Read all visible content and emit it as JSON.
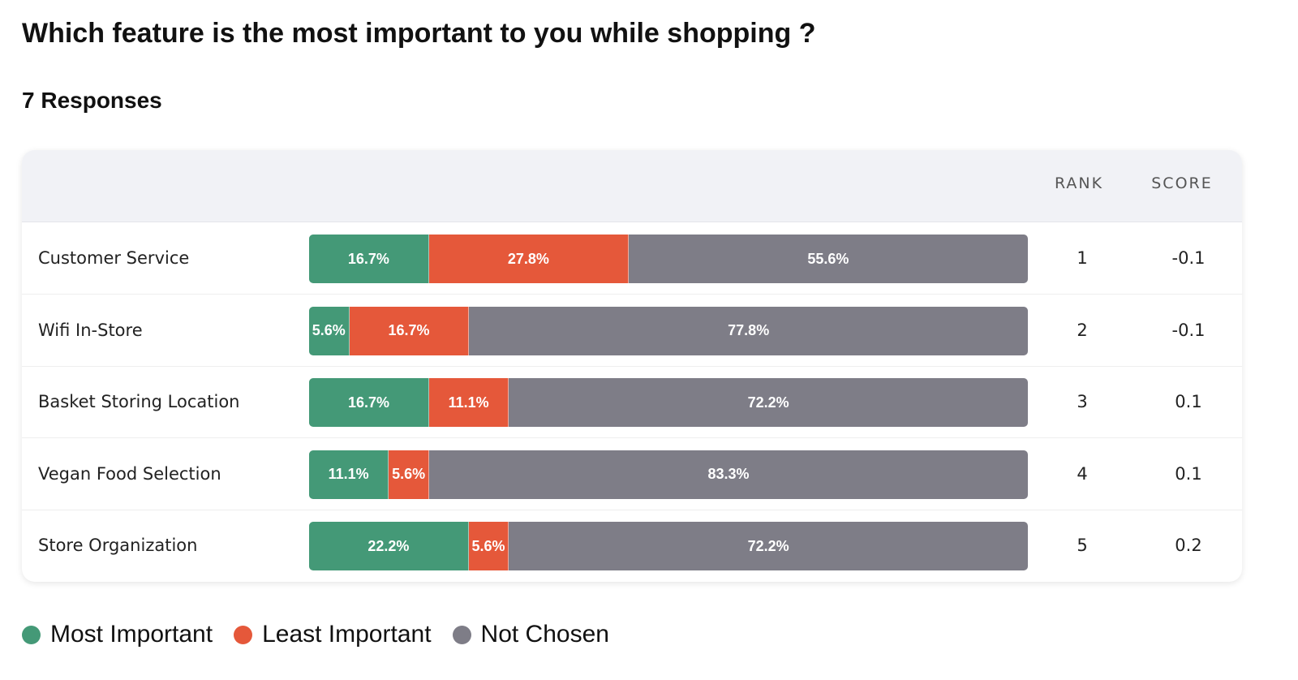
{
  "question": "Which feature is the most important to you while shopping ?",
  "responses_label": "7 Responses",
  "table": {
    "rank_header": "RANK",
    "score_header": "SCORE"
  },
  "colors": {
    "most_important": "#449977",
    "least_important": "#e5583a",
    "not_chosen": "#7e7d87"
  },
  "legend": [
    {
      "key": "most_important",
      "label": "Most Important"
    },
    {
      "key": "least_important",
      "label": "Least Important"
    },
    {
      "key": "not_chosen",
      "label": "Not Chosen"
    }
  ],
  "chart_data": {
    "type": "bar",
    "stacked": true,
    "orientation": "horizontal",
    "title": "Which feature is the most important to you while shopping ?",
    "subtitle": "7 Responses",
    "categories": [
      "Customer Service",
      "Wifi In-Store",
      "Basket Storing Location",
      "Vegan Food Selection",
      "Store Organization"
    ],
    "series": [
      {
        "name": "Most Important",
        "values": [
          16.7,
          5.6,
          16.7,
          11.1,
          22.2
        ],
        "labels": [
          "16.7%",
          "5.6%",
          "16.7%",
          "11.1%",
          "22.2%"
        ]
      },
      {
        "name": "Least Important",
        "values": [
          27.8,
          16.7,
          11.1,
          5.6,
          5.6
        ],
        "labels": [
          "27.8%",
          "16.7%",
          "11.1%",
          "5.6%",
          "5.6%"
        ]
      },
      {
        "name": "Not Chosen",
        "values": [
          55.6,
          77.8,
          72.2,
          83.3,
          72.2
        ],
        "labels": [
          "55.6%",
          "77.8%",
          "72.2%",
          "83.3%",
          "72.2%"
        ]
      }
    ],
    "rank": [
      "1",
      "2",
      "3",
      "4",
      "5"
    ],
    "score": [
      "-0.1",
      "-0.1",
      "0.1",
      "0.1",
      "0.2"
    ],
    "legend_position": "bottom-left"
  }
}
